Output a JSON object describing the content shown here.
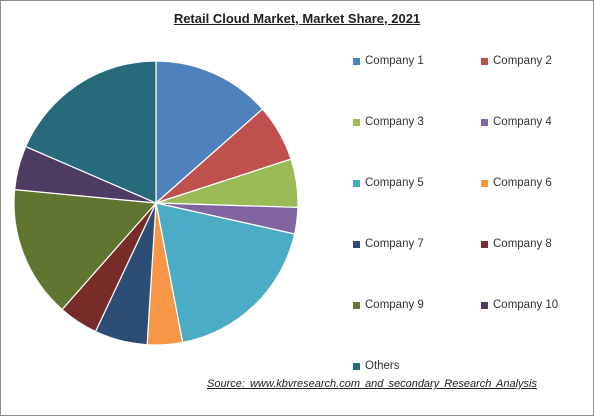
{
  "chart_data": {
    "type": "pie",
    "title": "Retail Cloud Market, Market Share, 2021",
    "categories": [
      "Company 1",
      "Company 2",
      "Company 3",
      "Company 4",
      "Company 5",
      "Company 6",
      "Company 7",
      "Company 8",
      "Company 9",
      "Company 10",
      "Others"
    ],
    "values": [
      13.5,
      6.5,
      5.5,
      3.0,
      18.5,
      4.0,
      6.0,
      4.5,
      15.0,
      5.0,
      18.5
    ],
    "colors": [
      "#4f81bd",
      "#c0504d",
      "#9bbb59",
      "#8064a2",
      "#4bacc6",
      "#f79646",
      "#2c4d75",
      "#772c2a",
      "#5f7530",
      "#4d3b62",
      "#276a7c"
    ],
    "start_angle_deg": 0,
    "direction": "clockwise",
    "legend_position": "right"
  },
  "source_text": "Source:  www.kbvresearch.com  and secondary Research  Analysis"
}
